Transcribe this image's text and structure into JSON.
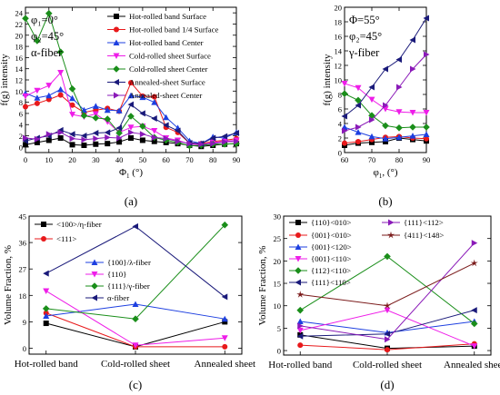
{
  "chart_data": [
    {
      "type": "line",
      "panel_label": "(a)",
      "xlabel": "Φ",
      "xlabel_sub": "1",
      "xlabel_unit": " (°)",
      "ylabel": "f(g) intensity",
      "xlim": [
        0,
        90
      ],
      "ylim": [
        -1,
        25
      ],
      "xticks": [
        "0",
        "10",
        "20",
        "30",
        "40",
        "50",
        "60",
        "70",
        "80",
        "90"
      ],
      "yticks": [
        "0",
        "2",
        "4",
        "6",
        "8",
        "10",
        "12",
        "14",
        "16",
        "18",
        "20",
        "22",
        "24"
      ],
      "annotations": [
        "φ₁=0°",
        "φ₂=45°",
        "α-fiber"
      ],
      "legend_position": "top-right",
      "x": [
        0,
        5,
        10,
        15,
        20,
        25,
        30,
        35,
        40,
        45,
        50,
        55,
        60,
        65,
        70,
        75,
        80,
        85,
        90
      ],
      "series": [
        {
          "name": "Hot-rolled band Surface",
          "color": "#000000",
          "marker": "square",
          "values": [
            0.4,
            0.8,
            1.2,
            1.6,
            0.4,
            0.3,
            0.5,
            0.6,
            0.9,
            1.6,
            1.2,
            1.0,
            0.8,
            0.6,
            0.3,
            0.1,
            0.3,
            0.5,
            0.6
          ]
        },
        {
          "name": "Hot-rolled band 1/4 Surface",
          "color": "#e8191b",
          "marker": "circle",
          "values": [
            7.2,
            7.8,
            8.5,
            9.3,
            7.5,
            6.2,
            6.6,
            6.9,
            6.4,
            11.5,
            9.1,
            9.0,
            3.5,
            2.6,
            0.7,
            0.6,
            1.0,
            1.2,
            1.5
          ]
        },
        {
          "name": "Hot-rolled band Center",
          "color": "#1d3fe0",
          "marker": "triangle-up",
          "values": [
            9.6,
            8.8,
            9.2,
            10.3,
            8.7,
            6.6,
            7.3,
            6.6,
            6.5,
            9.2,
            8.9,
            8.0,
            5.3,
            3.4,
            1.1,
            0.6,
            1.8,
            1.6,
            2.6
          ]
        },
        {
          "name": "Cold-rolled sheet Surface",
          "color": "#ee1de8",
          "marker": "triangle-down",
          "values": [
            9.1,
            10.1,
            11.0,
            13.3,
            5.8,
            5.4,
            5.9,
            4.5,
            2.6,
            3.5,
            3.7,
            2.9,
            1.6,
            1.2,
            0.5,
            0.4,
            0.8,
            1.0,
            1.2
          ]
        },
        {
          "name": "Cold-rolled sheet Center",
          "color": "#1a8e1a",
          "marker": "diamond",
          "values": [
            23.0,
            19.0,
            23.9,
            17.0,
            10.4,
            5.6,
            5.2,
            5.0,
            2.5,
            5.5,
            3.7,
            1.7,
            1.2,
            0.8,
            0.2,
            0.3,
            0.5,
            0.5,
            0.6
          ]
        },
        {
          "name": "Annealed-sheet Surface",
          "color": "#1a1a7a",
          "marker": "triangle-left",
          "values": [
            1.1,
            1.6,
            2.0,
            3.0,
            2.3,
            2.0,
            2.5,
            2.6,
            3.4,
            7.6,
            6.0,
            5.1,
            3.9,
            2.9,
            0.7,
            0.6,
            1.6,
            1.9,
            2.5
          ]
        },
        {
          "name": "Annealed-sheet Center",
          "color": "#8a1ab8",
          "marker": "triangle-right",
          "values": [
            1.6,
            1.4,
            2.3,
            2.6,
            1.5,
            1.3,
            1.5,
            1.7,
            1.6,
            2.6,
            2.3,
            1.7,
            1.5,
            1.0,
            0.6,
            0.5,
            0.6,
            0.9,
            1.0
          ]
        }
      ]
    },
    {
      "type": "line",
      "panel_label": "(b)",
      "xlabel": "φ",
      "xlabel_sub": "1",
      "xlabel_unit": ", (°)",
      "ylabel": "f(g) intensity",
      "xlim": [
        60,
        90
      ],
      "ylim": [
        0,
        20
      ],
      "xticks": [
        "60",
        "70",
        "80",
        "90"
      ],
      "yticks": [
        "0",
        "2",
        "4",
        "6",
        "8",
        "10",
        "12",
        "14",
        "16",
        "18",
        "20"
      ],
      "annotations": [
        "Φ=55°",
        "φ₂=45°",
        "γ-fiber"
      ],
      "x": [
        60,
        65,
        70,
        75,
        80,
        85,
        90
      ],
      "series": [
        {
          "name": "Hot-rolled band Surface",
          "color": "#000000",
          "marker": "square",
          "values": [
            1.0,
            1.3,
            1.4,
            1.5,
            2.0,
            1.8,
            1.6
          ]
        },
        {
          "name": "Hot-rolled band 1/4 Surface",
          "color": "#e8191b",
          "marker": "circle",
          "values": [
            1.3,
            1.5,
            1.8,
            2.1,
            2.2,
            2.0,
            1.9
          ]
        },
        {
          "name": "Hot-rolled band Center",
          "color": "#1d3fe0",
          "marker": "triangle-up",
          "values": [
            3.5,
            2.8,
            2.2,
            1.9,
            2.1,
            2.3,
            2.5
          ]
        },
        {
          "name": "Cold-rolled sheet Surface",
          "color": "#ee1de8",
          "marker": "triangle-down",
          "values": [
            9.5,
            8.9,
            7.3,
            6.0,
            5.6,
            5.5,
            5.5
          ]
        },
        {
          "name": "Cold-rolled sheet Center",
          "color": "#1a8e1a",
          "marker": "diamond",
          "values": [
            8.1,
            7.2,
            5.1,
            3.7,
            3.4,
            3.5,
            3.5
          ]
        },
        {
          "name": "Annealed-sheet Surface",
          "color": "#1a1a7a",
          "marker": "triangle-left",
          "values": [
            5.0,
            6.5,
            9.0,
            11.5,
            12.8,
            15.5,
            18.5
          ]
        },
        {
          "name": "Annealed-sheet Center",
          "color": "#8a1ab8",
          "marker": "triangle-right",
          "values": [
            3.0,
            3.5,
            4.5,
            6.5,
            9.0,
            11.5,
            13.5
          ]
        }
      ]
    },
    {
      "type": "line",
      "panel_label": "(c)",
      "ylabel": "Volume Fraction, %",
      "ylim": [
        -2,
        45
      ],
      "yticks": [
        "0",
        "9",
        "18",
        "27",
        "36",
        "45"
      ],
      "categories": [
        "Hot-rolled band",
        "Cold-rolled sheet",
        "Annealed sheet"
      ],
      "series": [
        {
          "name": "<100>/η-fiber",
          "color": "#000000",
          "marker": "square",
          "values": [
            8.5,
            0.5,
            9.0
          ]
        },
        {
          "name": "<111>",
          "color": "#e8191b",
          "marker": "circle",
          "values": [
            12.0,
            0.5,
            0.5
          ]
        },
        {
          "name": "{100}/λ-fiber",
          "color": "#1d3fe0",
          "marker": "triangle-up",
          "values": [
            11.0,
            15.0,
            10.0
          ]
        },
        {
          "name": "{110}",
          "color": "#ee1de8",
          "marker": "triangle-down",
          "values": [
            19.5,
            1.0,
            3.5
          ]
        },
        {
          "name": "{111}/γ-fiber",
          "color": "#1a8e1a",
          "marker": "diamond",
          "values": [
            13.5,
            10.0,
            42.0
          ]
        },
        {
          "name": "α-fiber",
          "color": "#1a1a7a",
          "marker": "triangle-left",
          "values": [
            25.5,
            41.5,
            17.5
          ]
        }
      ]
    },
    {
      "type": "line",
      "panel_label": "(d)",
      "ylabel": "Volume Fraction, %",
      "ylim": [
        -1,
        30
      ],
      "yticks": [
        "0",
        "5",
        "10",
        "15",
        "20",
        "25",
        "30"
      ],
      "categories": [
        "Hot-rolled band",
        "Cold-rolled sheet",
        "Annealed sheet"
      ],
      "series": [
        {
          "name": "{110}<010>",
          "color": "#000000",
          "marker": "square",
          "values": [
            3.5,
            0.5,
            1.0
          ]
        },
        {
          "name": "{001}<010>",
          "color": "#e8191b",
          "marker": "circle",
          "values": [
            1.2,
            0.2,
            1.5
          ]
        },
        {
          "name": "{001}<120>",
          "color": "#1d3fe0",
          "marker": "triangle-up",
          "values": [
            6.5,
            4.0,
            6.5
          ]
        },
        {
          "name": "{001}<110>",
          "color": "#ee1de8",
          "marker": "triangle-down",
          "values": [
            4.5,
            9.0,
            1.0
          ]
        },
        {
          "name": "{112}<110>",
          "color": "#1a8e1a",
          "marker": "diamond",
          "values": [
            9.0,
            21.0,
            6.0
          ]
        },
        {
          "name": "{111}<110>",
          "color": "#1a1a7a",
          "marker": "triangle-left",
          "values": [
            3.2,
            3.7,
            9.0
          ]
        },
        {
          "name": "{111}<112>",
          "color": "#8a1ab8",
          "marker": "triangle-right",
          "values": [
            5.5,
            2.5,
            24.0
          ]
        },
        {
          "name": "{411}<148>",
          "color": "#7a1a1a",
          "marker": "star",
          "values": [
            12.5,
            10.0,
            19.5
          ]
        }
      ]
    }
  ]
}
